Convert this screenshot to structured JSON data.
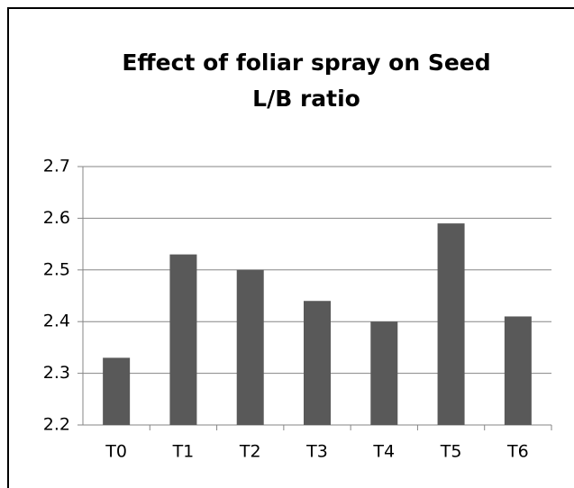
{
  "chart_data": {
    "type": "bar",
    "title": "Effect of foliar spray on Seed L/B ratio",
    "categories": [
      "T0",
      "T1",
      "T2",
      "T3",
      "T4",
      "T5",
      "T6"
    ],
    "values": [
      2.33,
      2.53,
      2.5,
      2.44,
      2.4,
      2.59,
      2.41
    ],
    "color": "#595959",
    "ylim": [
      2.2,
      2.7
    ],
    "yticks": [
      2.2,
      2.3,
      2.4,
      2.5,
      2.6,
      2.7
    ],
    "grid": true
  }
}
